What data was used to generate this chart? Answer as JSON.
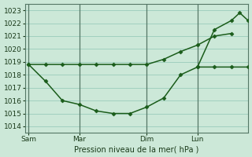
{
  "background_color": "#cce8d8",
  "grid_color": "#99ccbb",
  "line_color": "#1a5c1a",
  "marker_color": "#1a5c1a",
  "xlabel": "Pression niveau de la mer( hPa )",
  "ylim": [
    1013.5,
    1023.5
  ],
  "yticks": [
    1014,
    1015,
    1016,
    1017,
    1018,
    1019,
    1020,
    1021,
    1022,
    1023
  ],
  "xtick_labels": [
    "Sam",
    "Mar",
    "Dim",
    "Lun"
  ],
  "xtick_positions": [
    0,
    3,
    7,
    10
  ],
  "vline_positions": [
    0,
    3,
    7,
    10
  ],
  "xlim": [
    -0.2,
    13.0
  ],
  "series1_x": [
    0,
    1,
    2,
    3,
    4,
    5,
    6,
    7,
    8,
    9,
    10,
    11,
    12
  ],
  "series1_y": [
    1018.8,
    1018.8,
    1018.8,
    1018.8,
    1018.8,
    1018.8,
    1018.8,
    1018.8,
    1019.2,
    1019.8,
    1020.3,
    1021.0,
    1021.2
  ],
  "series2_x": [
    0,
    1,
    2,
    3,
    4,
    5,
    6,
    7,
    8,
    9,
    10,
    11,
    12,
    13
  ],
  "series2_y": [
    1018.8,
    1017.5,
    1016.0,
    1015.7,
    1015.2,
    1015.0,
    1015.0,
    1015.5,
    1016.2,
    1018.0,
    1018.6,
    1018.6,
    1018.6,
    1018.6
  ],
  "series3_x": [
    10,
    11,
    12,
    12.5,
    13
  ],
  "series3_y": [
    1018.6,
    1021.5,
    1022.2,
    1022.8,
    1022.2
  ]
}
